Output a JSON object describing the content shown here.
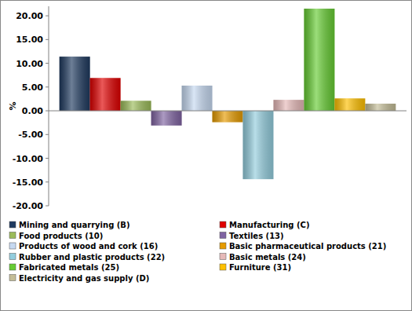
{
  "chart_data": {
    "type": "bar",
    "y_label": "%",
    "categories": [
      null
    ],
    "series": [
      {
        "name": "Mining and quarrying (B)",
        "color": "#1f3a5f",
        "values": [
          11.4
        ]
      },
      {
        "name": "Manufacturing (C)",
        "color": "#e00000",
        "values": [
          6.9
        ]
      },
      {
        "name": "Food products (10)",
        "color": "#9bbb59",
        "values": [
          2.1
        ]
      },
      {
        "name": "Textiles (13)",
        "color": "#8064a2",
        "values": [
          -3.1
        ]
      },
      {
        "name": "Products of wood and cork  (16)",
        "color": "#c6d9f1",
        "values": [
          5.3
        ]
      },
      {
        "name": "Basic pharmaceutical products  (21)",
        "color": "#e69b00",
        "values": [
          -2.4
        ]
      },
      {
        "name": "Rubber and plastic products (22)",
        "color": "#93cddd",
        "values": [
          -14.4
        ]
      },
      {
        "name": "Basic metals (24)",
        "color": "#e6b9b8",
        "values": [
          2.3
        ]
      },
      {
        "name": "Fabricated metals (25)",
        "color": "#66cc33",
        "values": [
          21.5
        ]
      },
      {
        "name": "Furniture (31)",
        "color": "#ffc000",
        "values": [
          2.6
        ]
      },
      {
        "name": "Electricity and gas supply (D)",
        "color": "#c4bd97",
        "values": [
          1.5
        ]
      }
    ],
    "ylim": [
      -20,
      22
    ],
    "yticks": [
      {
        "value": -20,
        "label": "-20.00"
      },
      {
        "value": -15,
        "label": "-15.00"
      },
      {
        "value": -10,
        "label": "-10.00"
      },
      {
        "value": -5,
        "label": "-5.00"
      },
      {
        "value": 0,
        "label": "0.00"
      },
      {
        "value": 5,
        "label": "5.00"
      },
      {
        "value": 10,
        "label": "10.00"
      },
      {
        "value": 15,
        "label": "15.00"
      },
      {
        "value": 20,
        "label": "20.00"
      }
    ],
    "grid": false,
    "legend": "bottom",
    "tick_labels": "y"
  }
}
